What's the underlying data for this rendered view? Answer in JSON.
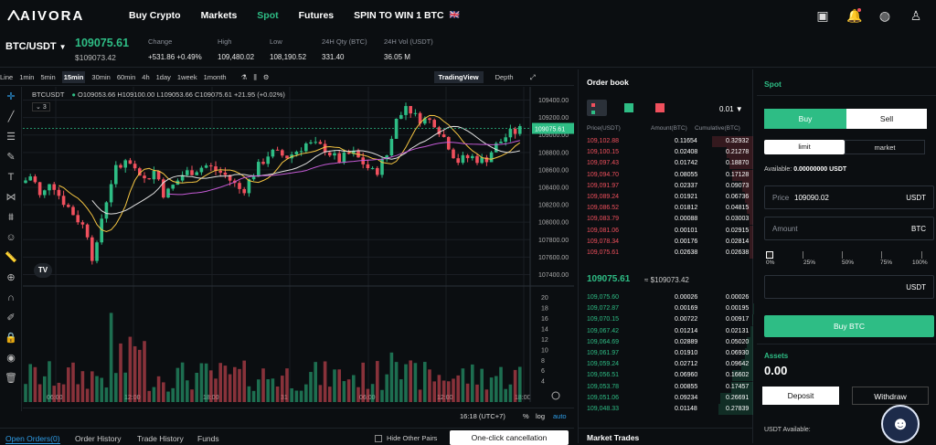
{
  "nav": {
    "logo": "AIVORA",
    "items": [
      "Buy Crypto",
      "Markets",
      "Spot",
      "Futures",
      "SPIN TO WIN 1 BTC"
    ],
    "flag": "🇬🇧"
  },
  "ticker": {
    "pair": "BTC/USDT",
    "last": "109075.61",
    "usd": "$109073.42",
    "stats": [
      {
        "label": "Change",
        "value": "+531.86  +0.49%"
      },
      {
        "label": "High",
        "value": "109,480.02"
      },
      {
        "label": "Low",
        "value": "108,190.52"
      },
      {
        "label": "24H Qty (BTC)",
        "value": "331.40"
      },
      {
        "label": "24H Vol (USDT)",
        "value": "36.05 M"
      }
    ]
  },
  "chartbar": {
    "intervals": [
      "Line",
      "1min",
      "5min",
      "15min",
      "30min",
      "60min",
      "4h",
      "1day",
      "1week",
      "1month"
    ],
    "active": "15min",
    "views": [
      "TradingView",
      "Depth"
    ]
  },
  "chart": {
    "symbol": "BTCUSDT",
    "ohlc": "O109053.66 H109100.00 L109053.66 C109075.61 +21.95 (+0.02%)",
    "collapse": "3",
    "price_ticks": [
      "109400.00",
      "109200.00",
      "109000.00",
      "108800.00",
      "108600.00",
      "108400.00",
      "108200.00",
      "108000.00",
      "107800.00",
      "107600.00",
      "107400.00"
    ],
    "price_label": "109075.61",
    "vol_ticks": [
      "20",
      "18",
      "16",
      "14",
      "12",
      "10",
      "8",
      "6",
      "4"
    ],
    "time_ticks": [
      "06:00",
      "12:00",
      "18:00",
      "31",
      "06:00",
      "12:00",
      "18:00"
    ],
    "clock": "16:18 (UTC+7)",
    "opts": [
      "%",
      "log",
      "auto"
    ]
  },
  "bottom": {
    "tabs": [
      "Open Orders(0)",
      "Order History",
      "Trade History",
      "Funds"
    ],
    "hide_other": "Hide Other Pairs",
    "one_click": "One-click cancellation"
  },
  "orderbook": {
    "title": "Order book",
    "precision": "0.01",
    "headers": [
      "Price(USDT)",
      "Amount(BTC)",
      "Cumulative(BTC)"
    ],
    "asks": [
      [
        "109,102.88",
        "0.11654",
        "0.32932"
      ],
      [
        "109,100.15",
        "0.02408",
        "0.21278"
      ],
      [
        "109,097.43",
        "0.01742",
        "0.18870"
      ],
      [
        "109,094.70",
        "0.08055",
        "0.17128"
      ],
      [
        "109,091.97",
        "0.02337",
        "0.09073"
      ],
      [
        "109,089.24",
        "0.01921",
        "0.06736"
      ],
      [
        "109,086.52",
        "0.01812",
        "0.04815"
      ],
      [
        "109,083.79",
        "0.00088",
        "0.03003"
      ],
      [
        "109,081.06",
        "0.00101",
        "0.02915"
      ],
      [
        "109,078.34",
        "0.00176",
        "0.02814"
      ],
      [
        "109,075.61",
        "0.02638",
        "0.02638"
      ]
    ],
    "mid": "109075.61",
    "mid_usd": "≈ $109073.42",
    "bids": [
      [
        "109,075.60",
        "0.00026",
        "0.00026"
      ],
      [
        "109,072.87",
        "0.00169",
        "0.00195"
      ],
      [
        "109,070.15",
        "0.00722",
        "0.00917"
      ],
      [
        "109,067.42",
        "0.01214",
        "0.02131"
      ],
      [
        "109,064.69",
        "0.02889",
        "0.05020"
      ],
      [
        "109,061.97",
        "0.01910",
        "0.06930"
      ],
      [
        "109,059.24",
        "0.02712",
        "0.09642"
      ],
      [
        "109,056.51",
        "0.06960",
        "0.16602"
      ],
      [
        "109,053.78",
        "0.00855",
        "0.17457"
      ],
      [
        "109,051.06",
        "0.09234",
        "0.26691"
      ],
      [
        "109,048.33",
        "0.01148",
        "0.27839"
      ]
    ],
    "market_trades": "Market Trades"
  },
  "spot": {
    "tab": "Spot",
    "buy": "Buy",
    "sell": "Sell",
    "limit": "limit",
    "market": "market",
    "available_label": "Available:",
    "available_value": "0.00000000 USDT",
    "price_label": "Price",
    "price_value": "109090.02",
    "price_unit": "USDT",
    "amount_label": "Amount",
    "amount_unit": "BTC",
    "total_unit": "USDT",
    "slider": [
      "0%",
      "25%",
      "50%",
      "75%",
      "100%"
    ],
    "buy_btn": "Buy BTC",
    "assets_label": "Assets",
    "assets_value": "0.00",
    "deposit": "Deposit",
    "withdraw": "Withdraw",
    "usdt_available": "USDT Available:"
  },
  "colors": {
    "green": "#2ebd85",
    "red": "#f0505d"
  }
}
